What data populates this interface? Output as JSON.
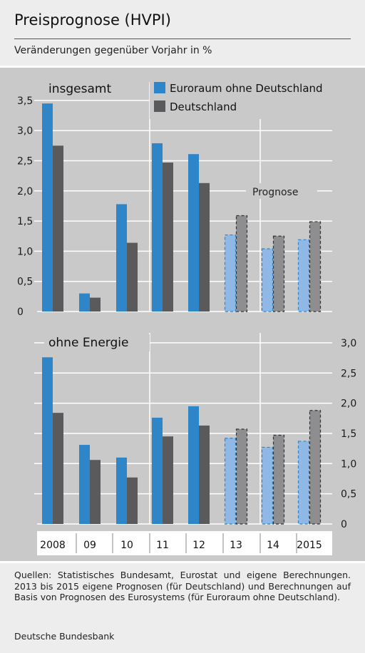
{
  "header": {
    "title": "Preisprognose (HVPI)",
    "subtitle": "Veränderungen gegenüber Vorjahr in %"
  },
  "footer": {
    "source": "Quellen: Statistisches Bundesamt, Eurostat und eigene Berechnungen. 2013 bis 2015 eigene Prognosen (für Deutschland) und Berechnungen auf Basis von Prognosen des Eurosystems (für Euroraum ohne Deutschland).",
    "org": "Deutsche Bundesbank"
  },
  "colors": {
    "euro": "#2e86c8",
    "de": "#5a5a5c",
    "euro_forecast": "#8fb8e6",
    "de_forecast": "#8e8e90",
    "panel_bg": "#c9c9c9"
  },
  "chart_data": [
    {
      "type": "bar",
      "title": "insgesamt",
      "categories": [
        "2008",
        "09",
        "10",
        "11",
        "12",
        "13",
        "14",
        "2015"
      ],
      "series": [
        {
          "name": "Euroraum ohne Deutschland",
          "values": [
            3.45,
            0.3,
            1.78,
            2.79,
            2.61,
            1.27,
            1.04,
            1.19
          ]
        },
        {
          "name": "Deutschland",
          "values": [
            2.75,
            0.23,
            1.14,
            2.47,
            2.13,
            1.59,
            1.25,
            1.49
          ]
        }
      ],
      "forecast_categories": [
        "13",
        "14",
        "2015"
      ],
      "forecast_label": "Prognose",
      "ylim": [
        0,
        3.5
      ],
      "yticks": [
        "0",
        "0,5",
        "1,0",
        "1,5",
        "2,0",
        "2,5",
        "3,0",
        "3,5"
      ],
      "grid": true,
      "legend": "top-right"
    },
    {
      "type": "bar",
      "title": "ohne Energie",
      "categories": [
        "2008",
        "09",
        "10",
        "11",
        "12",
        "13",
        "14",
        "2015"
      ],
      "series": [
        {
          "name": "Euroraum ohne Deutschland",
          "values": [
            2.76,
            1.31,
            1.1,
            1.76,
            1.95,
            1.42,
            1.27,
            1.37
          ]
        },
        {
          "name": "Deutschland",
          "values": [
            1.84,
            1.06,
            0.77,
            1.45,
            1.63,
            1.57,
            1.47,
            1.88
          ]
        }
      ],
      "forecast_categories": [
        "13",
        "14",
        "2015"
      ],
      "ylim": [
        0,
        3.0
      ],
      "yticks": [
        "0",
        "0,5",
        "1,0",
        "1,5",
        "2,0",
        "2,5",
        "3,0"
      ],
      "grid": true
    }
  ]
}
